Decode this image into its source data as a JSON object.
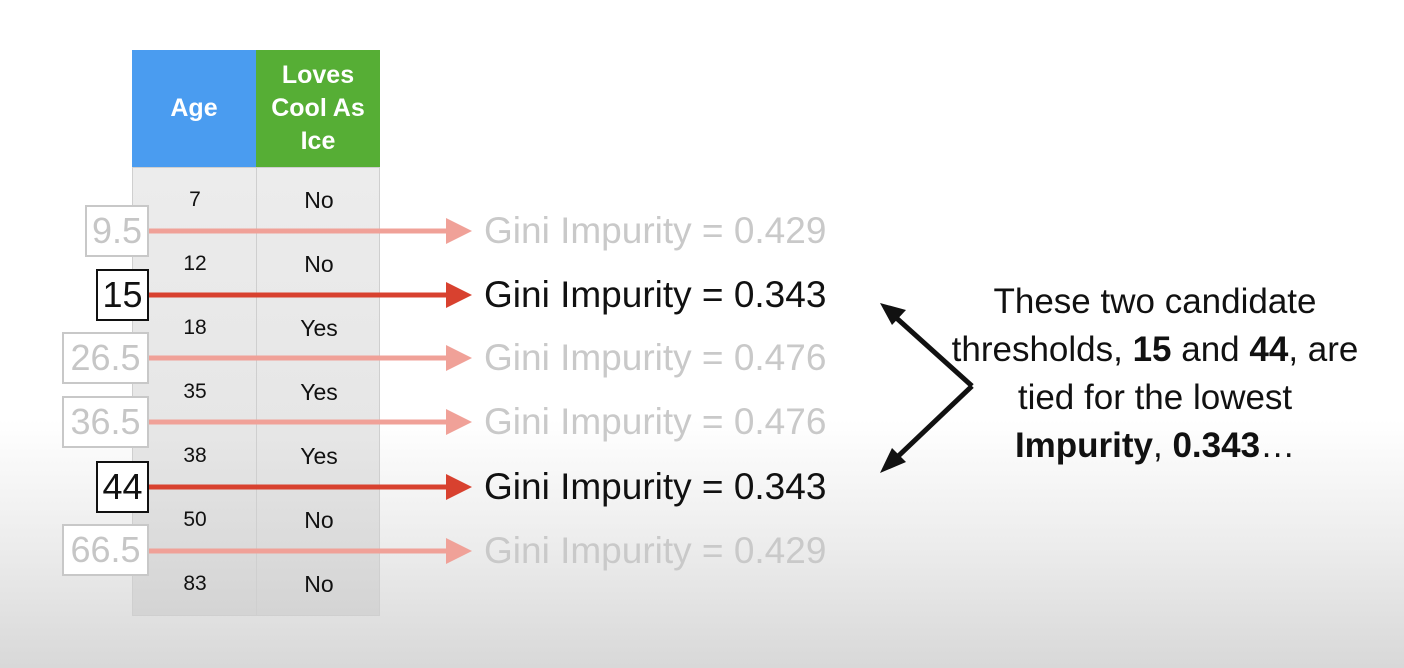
{
  "table": {
    "headers": {
      "age": "Age",
      "loves": "Loves Cool As Ice"
    },
    "rows": [
      {
        "age": "7",
        "loves": "No"
      },
      {
        "age": "12",
        "loves": "No"
      },
      {
        "age": "18",
        "loves": "Yes"
      },
      {
        "age": "35",
        "loves": "Yes"
      },
      {
        "age": "38",
        "loves": "Yes"
      },
      {
        "age": "50",
        "loves": "No"
      },
      {
        "age": "83",
        "loves": "No"
      }
    ]
  },
  "thresholds": [
    {
      "value": "9.5",
      "gini": "Gini Impurity = 0.429",
      "highlighted": false
    },
    {
      "value": "15",
      "gini": "Gini Impurity = 0.343",
      "highlighted": true
    },
    {
      "value": "26.5",
      "gini": "Gini Impurity = 0.476",
      "highlighted": false
    },
    {
      "value": "36.5",
      "gini": "Gini Impurity = 0.476",
      "highlighted": false
    },
    {
      "value": "44",
      "gini": "Gini Impurity = 0.343",
      "highlighted": true
    },
    {
      "value": "66.5",
      "gini": "Gini Impurity = 0.429",
      "highlighted": false
    }
  ],
  "caption": {
    "t1": "These two candidate thresholds, ",
    "b1": "15",
    "t2": " and ",
    "b2": "44",
    "t3": ", are tied for the lowest ",
    "b3": "Impurity",
    "t4": ", ",
    "b4": "0.343",
    "t5": "…"
  },
  "colors": {
    "age_header": "#4a9cf0",
    "loves_header": "#56ae35",
    "arrow_active": "#d8412f",
    "arrow_faded": "#f0a198"
  }
}
